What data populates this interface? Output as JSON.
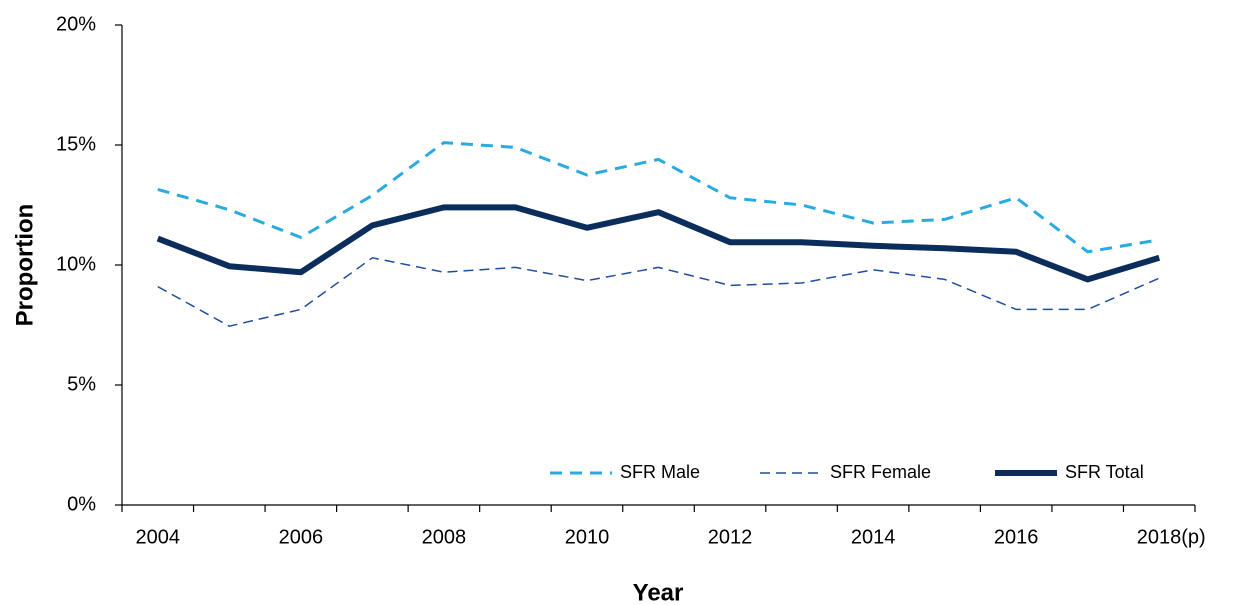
{
  "chart_data": {
    "type": "line",
    "x_label": "Year",
    "y_label": "Proportion",
    "categories": [
      "2004",
      null,
      "2006",
      null,
      "2008",
      null,
      "2010",
      null,
      "2012",
      null,
      "2014",
      null,
      "2016",
      null,
      "2018(p)"
    ],
    "series": [
      {
        "name": "SFR Male",
        "color": "#29abe2",
        "values": [
          13.15,
          12.3,
          11.15,
          12.9,
          15.1,
          14.9,
          13.75,
          14.4,
          12.8,
          12.5,
          11.75,
          11.9,
          12.8,
          10.55,
          11.05
        ]
      },
      {
        "name": "SFR Female",
        "color": "#1f4e9c",
        "values": [
          9.1,
          7.45,
          8.15,
          10.3,
          9.7,
          9.9,
          9.35,
          9.9,
          9.15,
          9.25,
          9.8,
          9.4,
          8.15,
          8.15,
          9.45
        ]
      },
      {
        "name": "SFR Total",
        "color": "#0b2d5b",
        "values": [
          11.1,
          9.95,
          9.7,
          11.65,
          12.4,
          12.4,
          11.55,
          12.2,
          10.95,
          10.95,
          10.8,
          10.7,
          10.55,
          9.4,
          10.3
        ]
      }
    ],
    "ylim": [
      0,
      20
    ],
    "yticks": [
      {
        "value": 0,
        "label": "0%"
      },
      {
        "value": 5,
        "label": "5%"
      },
      {
        "value": 10,
        "label": "10%"
      },
      {
        "value": 15,
        "label": "15%"
      },
      {
        "value": 20,
        "label": "20%"
      }
    ],
    "legend": "lower right"
  }
}
